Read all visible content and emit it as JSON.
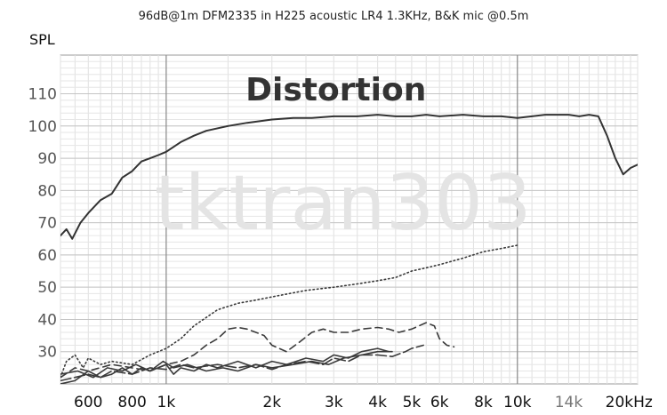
{
  "chart_data": {
    "type": "line",
    "title": "96dB@1m DFM2335 in H225 acoustic LR4 1.3KHz, B&K mic @0.5m",
    "ylabel": "SPL",
    "xlabel": "",
    "x_scale": "log",
    "xlim": [
      500,
      22000
    ],
    "ylim": [
      20,
      122
    ],
    "grid": true,
    "annotation": "Distortion",
    "watermark": "tktran303",
    "y_ticks": [
      {
        "v": 110,
        "label": "110"
      },
      {
        "v": 100,
        "label": "100"
      },
      {
        "v": 90,
        "label": "90"
      },
      {
        "v": 80,
        "label": "80"
      },
      {
        "v": 70,
        "label": "70"
      },
      {
        "v": 60,
        "label": "60"
      },
      {
        "v": 50,
        "label": "50"
      },
      {
        "v": 40,
        "label": "40"
      },
      {
        "v": 30,
        "label": "30"
      }
    ],
    "x_ticks": [
      {
        "v": 600,
        "label": "600"
      },
      {
        "v": 800,
        "label": "800"
      },
      {
        "v": 1000,
        "label": "1k"
      },
      {
        "v": 2000,
        "label": "2k"
      },
      {
        "v": 3000,
        "label": "3k"
      },
      {
        "v": 4000,
        "label": "4k"
      },
      {
        "v": 5000,
        "label": "5k"
      },
      {
        "v": 6000,
        "label": "6k"
      },
      {
        "v": 8000,
        "label": "8k"
      },
      {
        "v": 10000,
        "label": "10k"
      },
      {
        "v": 14000,
        "label": "14k"
      },
      {
        "v": 20000,
        "label": "20kHz"
      }
    ],
    "series": [
      {
        "style": "solid",
        "points": [
          [
            500,
            66
          ],
          [
            520,
            68
          ],
          [
            540,
            65
          ],
          [
            570,
            70
          ],
          [
            600,
            73
          ],
          [
            650,
            77
          ],
          [
            700,
            79
          ],
          [
            750,
            84
          ],
          [
            800,
            86
          ],
          [
            850,
            89
          ],
          [
            900,
            90
          ],
          [
            950,
            91
          ],
          [
            1000,
            92
          ],
          [
            1100,
            95
          ],
          [
            1200,
            97
          ],
          [
            1300,
            98.5
          ],
          [
            1500,
            100
          ],
          [
            1700,
            101
          ],
          [
            2000,
            102
          ],
          [
            2300,
            102.5
          ],
          [
            2600,
            102.5
          ],
          [
            3000,
            103
          ],
          [
            3500,
            103
          ],
          [
            4000,
            103.5
          ],
          [
            4500,
            103
          ],
          [
            5000,
            103
          ],
          [
            5500,
            103.5
          ],
          [
            6000,
            103
          ],
          [
            7000,
            103.5
          ],
          [
            8000,
            103
          ],
          [
            9000,
            103
          ],
          [
            10000,
            102.5
          ],
          [
            11000,
            103
          ],
          [
            12000,
            103.5
          ],
          [
            13000,
            103.5
          ],
          [
            14000,
            103.5
          ],
          [
            15000,
            103
          ],
          [
            16000,
            103.5
          ],
          [
            17000,
            103
          ],
          [
            18000,
            97
          ],
          [
            19000,
            90
          ],
          [
            20000,
            85
          ],
          [
            21000,
            87
          ],
          [
            22000,
            88
          ]
        ]
      },
      {
        "style": "dotted",
        "points": [
          [
            500,
            22
          ],
          [
            520,
            27
          ],
          [
            550,
            29
          ],
          [
            580,
            25
          ],
          [
            600,
            28
          ],
          [
            650,
            26
          ],
          [
            700,
            27
          ],
          [
            800,
            26
          ],
          [
            900,
            29
          ],
          [
            1000,
            31
          ],
          [
            1100,
            34
          ],
          [
            1200,
            38
          ],
          [
            1400,
            43
          ],
          [
            1600,
            45
          ],
          [
            1800,
            46
          ],
          [
            2000,
            47
          ],
          [
            2500,
            49
          ],
          [
            3000,
            50
          ],
          [
            3500,
            51
          ],
          [
            4000,
            52
          ],
          [
            4500,
            53
          ],
          [
            5000,
            55
          ],
          [
            5500,
            56
          ],
          [
            6000,
            57
          ],
          [
            7000,
            59
          ],
          [
            8000,
            61
          ],
          [
            9000,
            62
          ],
          [
            10000,
            63
          ]
        ]
      },
      {
        "style": "dashed",
        "points": [
          [
            500,
            22
          ],
          [
            550,
            25
          ],
          [
            600,
            24
          ],
          [
            700,
            26
          ],
          [
            800,
            25
          ],
          [
            900,
            24
          ],
          [
            1000,
            26
          ],
          [
            1100,
            27
          ],
          [
            1200,
            29
          ],
          [
            1300,
            32
          ],
          [
            1400,
            34
          ],
          [
            1500,
            37
          ],
          [
            1600,
            37.5
          ],
          [
            1700,
            37
          ],
          [
            1800,
            36
          ],
          [
            1900,
            35
          ],
          [
            2000,
            32
          ],
          [
            2200,
            30
          ],
          [
            2400,
            33
          ],
          [
            2600,
            36
          ],
          [
            2800,
            37
          ],
          [
            3000,
            36
          ],
          [
            3300,
            36
          ],
          [
            3600,
            37
          ],
          [
            4000,
            37.5
          ],
          [
            4300,
            37
          ],
          [
            4600,
            36
          ],
          [
            5000,
            37
          ],
          [
            5500,
            39
          ],
          [
            5800,
            38
          ],
          [
            6000,
            34
          ],
          [
            6300,
            32
          ],
          [
            6600,
            31.5
          ]
        ]
      },
      {
        "style": "longdash",
        "points": [
          [
            500,
            21
          ],
          [
            550,
            22
          ],
          [
            600,
            23
          ],
          [
            650,
            22
          ],
          [
            700,
            24
          ],
          [
            800,
            23
          ],
          [
            900,
            25
          ],
          [
            1000,
            24.5
          ],
          [
            1100,
            26
          ],
          [
            1200,
            25
          ],
          [
            1400,
            26
          ],
          [
            1600,
            25
          ],
          [
            1800,
            26
          ],
          [
            2000,
            24.5
          ],
          [
            2200,
            26
          ],
          [
            2500,
            27
          ],
          [
            2800,
            26
          ],
          [
            3000,
            28
          ],
          [
            3300,
            27
          ],
          [
            3600,
            29
          ],
          [
            4000,
            29
          ],
          [
            4400,
            28.5
          ],
          [
            4800,
            30
          ],
          [
            5000,
            31
          ],
          [
            5400,
            32
          ]
        ]
      },
      {
        "style": "solid",
        "points": [
          [
            500,
            20
          ],
          [
            550,
            21
          ],
          [
            600,
            24
          ],
          [
            650,
            22
          ],
          [
            700,
            23
          ],
          [
            750,
            25
          ],
          [
            800,
            23
          ],
          [
            850,
            25
          ],
          [
            900,
            24
          ],
          [
            1000,
            26
          ],
          [
            1050,
            23
          ],
          [
            1100,
            25
          ],
          [
            1200,
            24
          ],
          [
            1300,
            26
          ],
          [
            1400,
            25
          ],
          [
            1600,
            27
          ],
          [
            1800,
            25
          ],
          [
            2000,
            27
          ],
          [
            2200,
            26
          ],
          [
            2500,
            28
          ],
          [
            2800,
            27
          ],
          [
            3000,
            29
          ],
          [
            3300,
            28
          ],
          [
            3600,
            30
          ],
          [
            4000,
            31
          ],
          [
            4300,
            30
          ]
        ]
      },
      {
        "style": "solid",
        "points": [
          [
            500,
            23
          ],
          [
            560,
            24
          ],
          [
            620,
            22
          ],
          [
            680,
            25
          ],
          [
            750,
            24
          ],
          [
            820,
            26
          ],
          [
            900,
            24
          ],
          [
            980,
            27
          ],
          [
            1050,
            25
          ],
          [
            1150,
            26
          ],
          [
            1300,
            24
          ],
          [
            1450,
            25
          ],
          [
            1600,
            24
          ],
          [
            1800,
            26
          ],
          [
            2000,
            25
          ],
          [
            2300,
            26
          ],
          [
            2600,
            27
          ],
          [
            2900,
            26
          ],
          [
            3200,
            28
          ],
          [
            3600,
            29
          ],
          [
            4000,
            30
          ],
          [
            4400,
            30
          ]
        ]
      }
    ]
  }
}
